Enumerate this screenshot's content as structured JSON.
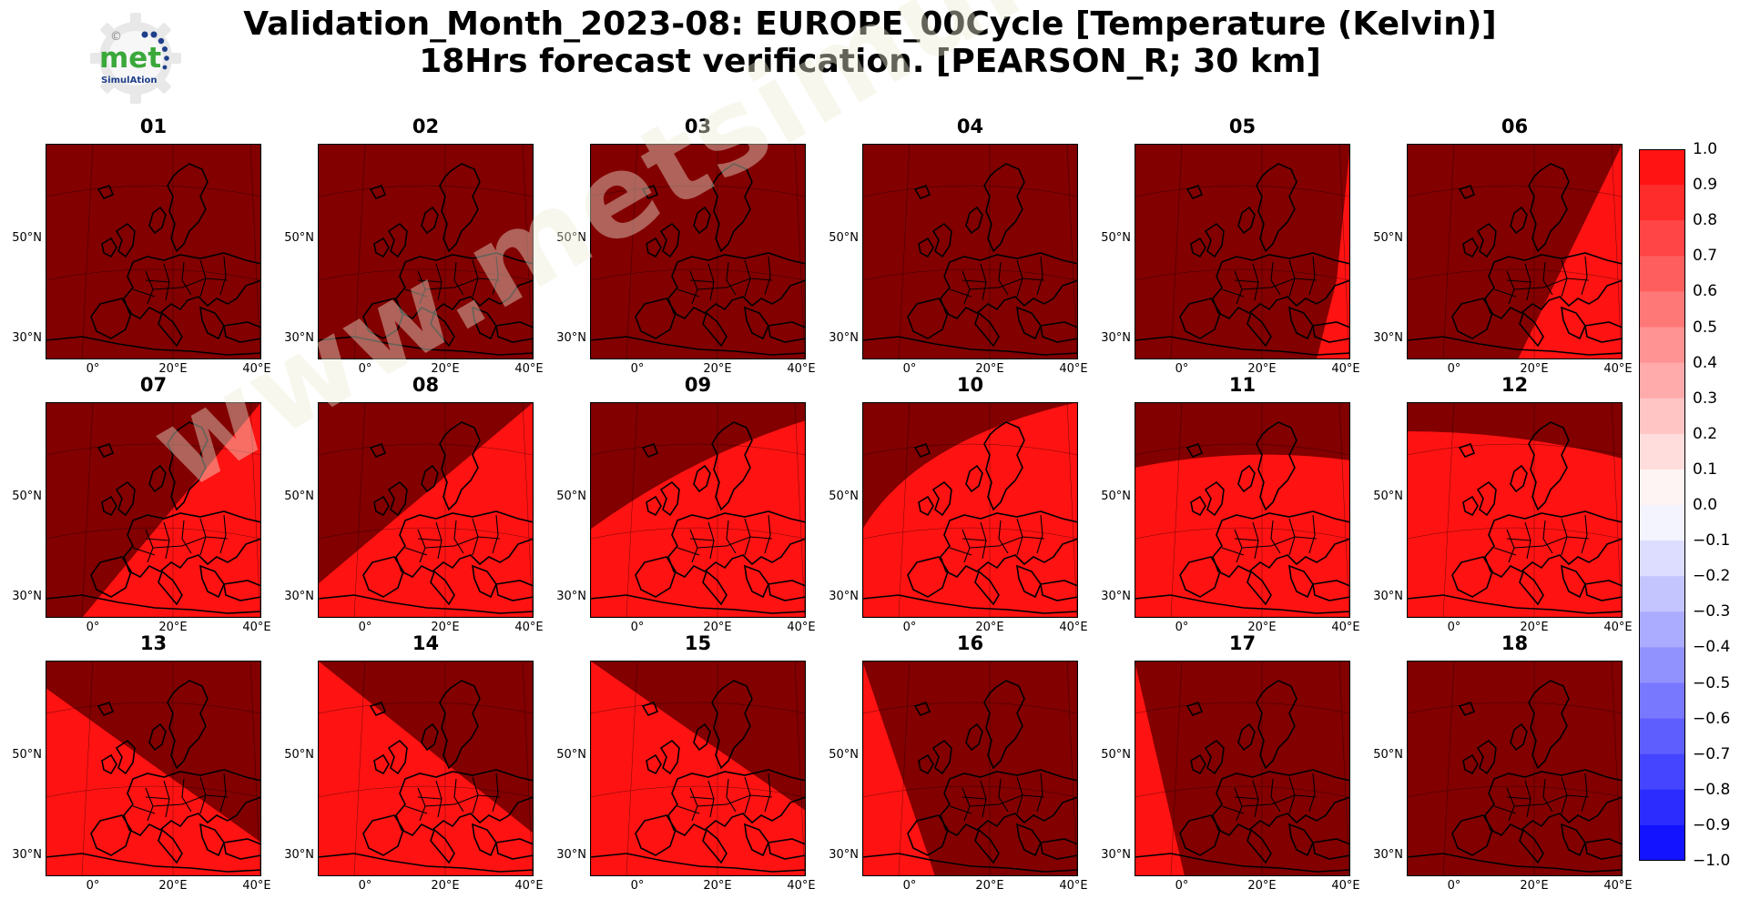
{
  "title": {
    "line1": "Validation_Month_2023-08: EUROPE_00Cycle [Temperature (Kelvin)]",
    "line2": "18Hrs forecast verification.  [PEARSON_R; 30 km]"
  },
  "logo": {
    "word": "met",
    "subword": "SimulAtion",
    "copyright": "©"
  },
  "watermark": "www.metsimulation.com",
  "axes": {
    "lat_labels": [
      "50°N",
      "30°N"
    ],
    "lon_labels": [
      "0°",
      "20°E",
      "40°E"
    ]
  },
  "panels": [
    {
      "label": "01"
    },
    {
      "label": "02"
    },
    {
      "label": "03"
    },
    {
      "label": "04"
    },
    {
      "label": "05"
    },
    {
      "label": "06"
    },
    {
      "label": "07"
    },
    {
      "label": "08"
    },
    {
      "label": "09"
    },
    {
      "label": "10"
    },
    {
      "label": "11"
    },
    {
      "label": "12"
    },
    {
      "label": "13"
    },
    {
      "label": "14"
    },
    {
      "label": "15"
    },
    {
      "label": "16"
    },
    {
      "label": "17"
    },
    {
      "label": "18"
    }
  ],
  "colorbar": {
    "ticks": [
      "1.0",
      "0.9",
      "0.8",
      "0.7",
      "0.6",
      "0.5",
      "0.4",
      "0.3",
      "0.2",
      "0.1",
      "0.0",
      "−0.1",
      "−0.2",
      "−0.3",
      "−0.4",
      "−0.5",
      "−0.6",
      "−0.7",
      "−0.8",
      "−0.9",
      "−1.0"
    ],
    "colors": [
      "#ff1313",
      "#ff2c2c",
      "#ff4545",
      "#ff5e5e",
      "#ff7878",
      "#ff9292",
      "#ffabab",
      "#ffc4c4",
      "#ffdddd",
      "#fff4f4",
      "#f4f4ff",
      "#ddddff",
      "#c4c4ff",
      "#ababff",
      "#9292ff",
      "#7878ff",
      "#5e5eff",
      "#4545ff",
      "#2c2cff",
      "#1313ff"
    ]
  },
  "colors": {
    "dark_field": "#820000",
    "bright_field": "#ff1212"
  }
}
